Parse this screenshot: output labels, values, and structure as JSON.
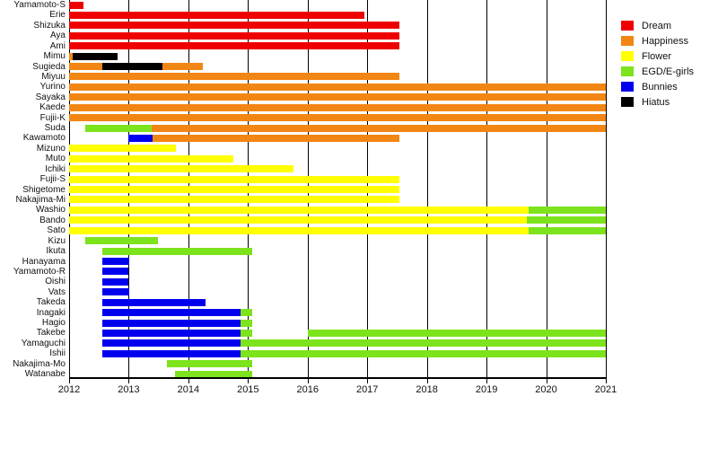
{
  "chart_data": {
    "type": "gantt",
    "title": "",
    "x_axis": {
      "range": [
        2012,
        2021
      ],
      "ticks": [
        "2012",
        "2013",
        "2014",
        "2015",
        "2016",
        "2017",
        "2018",
        "2019",
        "2020",
        "2021"
      ]
    },
    "legend_position": "top-right",
    "grid": true,
    "groups": [
      {
        "label": "Dream",
        "color": "#ee0000"
      },
      {
        "label": "Happiness",
        "color": "#f28614"
      },
      {
        "label": "Flower",
        "color": "#ffff00"
      },
      {
        "label": "EGD/E-girls",
        "color": "#7ce31c"
      },
      {
        "label": "Bunnies",
        "color": "#0000ee"
      },
      {
        "label": "Hiatus",
        "color": "#000000"
      }
    ],
    "rows": [
      {
        "name": "Yamamoto-S",
        "segments": [
          {
            "group": "Dream",
            "start": 2012.0,
            "end": 2012.24
          }
        ]
      },
      {
        "name": "Erie",
        "segments": [
          {
            "group": "Dream",
            "start": 2012.0,
            "end": 2016.95
          }
        ]
      },
      {
        "name": "Shizuka",
        "segments": [
          {
            "group": "Dream",
            "start": 2012.0,
            "end": 2017.54
          }
        ]
      },
      {
        "name": "Aya",
        "segments": [
          {
            "group": "Dream",
            "start": 2012.0,
            "end": 2017.54
          }
        ]
      },
      {
        "name": "Ami",
        "segments": [
          {
            "group": "Dream",
            "start": 2012.0,
            "end": 2017.54
          }
        ]
      },
      {
        "name": "Mimu",
        "segments": [
          {
            "group": "Happiness",
            "start": 2012.0,
            "end": 2012.06
          },
          {
            "group": "Hiatus",
            "start": 2012.06,
            "end": 2012.81
          }
        ]
      },
      {
        "name": "Sugieda",
        "segments": [
          {
            "group": "Happiness",
            "start": 2012.0,
            "end": 2012.55
          },
          {
            "group": "Hiatus",
            "start": 2012.55,
            "end": 2013.56
          },
          {
            "group": "Happiness",
            "start": 2013.56,
            "end": 2014.24
          }
        ]
      },
      {
        "name": "Miyuu",
        "segments": [
          {
            "group": "Happiness",
            "start": 2012.0,
            "end": 2017.54
          }
        ]
      },
      {
        "name": "Yurino",
        "segments": [
          {
            "group": "Happiness",
            "start": 2012.0,
            "end": 2021.0
          }
        ]
      },
      {
        "name": "Sayaka",
        "segments": [
          {
            "group": "Happiness",
            "start": 2012.0,
            "end": 2021.0
          }
        ]
      },
      {
        "name": "Kaede",
        "segments": [
          {
            "group": "Happiness",
            "start": 2012.0,
            "end": 2021.0
          }
        ]
      },
      {
        "name": "Fujii-K",
        "segments": [
          {
            "group": "Happiness",
            "start": 2012.0,
            "end": 2021.0
          }
        ]
      },
      {
        "name": "Suda",
        "segments": [
          {
            "group": "EGD/E-girls",
            "start": 2012.27,
            "end": 2013.39
          },
          {
            "group": "Happiness",
            "start": 2013.39,
            "end": 2021.0
          }
        ]
      },
      {
        "name": "Kawamoto",
        "segments": [
          {
            "group": "Bunnies",
            "start": 2012.99,
            "end": 2013.4
          },
          {
            "group": "Happiness",
            "start": 2013.4,
            "end": 2017.54
          }
        ]
      },
      {
        "name": "Mizuno",
        "segments": [
          {
            "group": "Flower",
            "start": 2012.0,
            "end": 2013.79
          }
        ]
      },
      {
        "name": "Muto",
        "segments": [
          {
            "group": "Flower",
            "start": 2012.0,
            "end": 2014.76
          }
        ]
      },
      {
        "name": "Ichiki",
        "segments": [
          {
            "group": "Flower",
            "start": 2012.0,
            "end": 2015.76
          }
        ]
      },
      {
        "name": "Fujii-S",
        "segments": [
          {
            "group": "Flower",
            "start": 2012.0,
            "end": 2017.54
          }
        ]
      },
      {
        "name": "Shigetome",
        "segments": [
          {
            "group": "Flower",
            "start": 2012.0,
            "end": 2017.54
          }
        ]
      },
      {
        "name": "Nakajima-Mi",
        "segments": [
          {
            "group": "Flower",
            "start": 2012.0,
            "end": 2017.54
          }
        ]
      },
      {
        "name": "Washio",
        "segments": [
          {
            "group": "Flower",
            "start": 2012.0,
            "end": 2019.71
          },
          {
            "group": "EGD/E-girls",
            "start": 2019.71,
            "end": 2021.0
          }
        ]
      },
      {
        "name": "Bando",
        "segments": [
          {
            "group": "Flower",
            "start": 2012.0,
            "end": 2019.67
          },
          {
            "group": "EGD/E-girls",
            "start": 2019.67,
            "end": 2021.0
          }
        ]
      },
      {
        "name": "Sato",
        "segments": [
          {
            "group": "Flower",
            "start": 2012.0,
            "end": 2019.7
          },
          {
            "group": "EGD/E-girls",
            "start": 2019.7,
            "end": 2021.0
          }
        ]
      },
      {
        "name": "Kizu",
        "segments": [
          {
            "group": "EGD/E-girls",
            "start": 2012.27,
            "end": 2013.49
          }
        ]
      },
      {
        "name": "Ikuta",
        "segments": [
          {
            "group": "EGD/E-girls",
            "start": 2012.56,
            "end": 2015.07
          }
        ]
      },
      {
        "name": "Hanayama",
        "segments": [
          {
            "group": "Bunnies",
            "start": 2012.56,
            "end": 2013.01
          }
        ]
      },
      {
        "name": "Yamamoto-R",
        "segments": [
          {
            "group": "Bunnies",
            "start": 2012.56,
            "end": 2013.0
          }
        ]
      },
      {
        "name": "Oishi",
        "segments": [
          {
            "group": "Bunnies",
            "start": 2012.56,
            "end": 2013.0
          }
        ]
      },
      {
        "name": "Vats",
        "segments": [
          {
            "group": "Bunnies",
            "start": 2012.56,
            "end": 2013.01
          }
        ]
      },
      {
        "name": "Takeda",
        "segments": [
          {
            "group": "Bunnies",
            "start": 2012.56,
            "end": 2014.29
          }
        ]
      },
      {
        "name": "Inagaki",
        "segments": [
          {
            "group": "Bunnies",
            "start": 2012.56,
            "end": 2014.88
          },
          {
            "group": "EGD/E-girls",
            "start": 2014.88,
            "end": 2015.07
          }
        ]
      },
      {
        "name": "Hagio",
        "segments": [
          {
            "group": "Bunnies",
            "start": 2012.56,
            "end": 2014.88
          },
          {
            "group": "EGD/E-girls",
            "start": 2014.88,
            "end": 2015.07
          }
        ]
      },
      {
        "name": "Takebe",
        "segments": [
          {
            "group": "Bunnies",
            "start": 2012.56,
            "end": 2014.88
          },
          {
            "group": "EGD/E-girls",
            "start": 2014.88,
            "end": 2015.07
          },
          {
            "group": "EGD/E-girls",
            "start": 2016.0,
            "end": 2021.0
          }
        ]
      },
      {
        "name": "Yamaguchi",
        "segments": [
          {
            "group": "Bunnies",
            "start": 2012.56,
            "end": 2014.88
          },
          {
            "group": "EGD/E-girls",
            "start": 2014.88,
            "end": 2021.0
          }
        ]
      },
      {
        "name": "Ishii",
        "segments": [
          {
            "group": "Bunnies",
            "start": 2012.56,
            "end": 2014.88
          },
          {
            "group": "EGD/E-girls",
            "start": 2014.88,
            "end": 2021.0
          }
        ]
      },
      {
        "name": "Nakajima-Mo",
        "segments": [
          {
            "group": "EGD/E-girls",
            "start": 2013.64,
            "end": 2015.07
          }
        ]
      },
      {
        "name": "Watanabe",
        "segments": [
          {
            "group": "EGD/E-girls",
            "start": 2013.78,
            "end": 2015.07
          }
        ]
      }
    ]
  }
}
